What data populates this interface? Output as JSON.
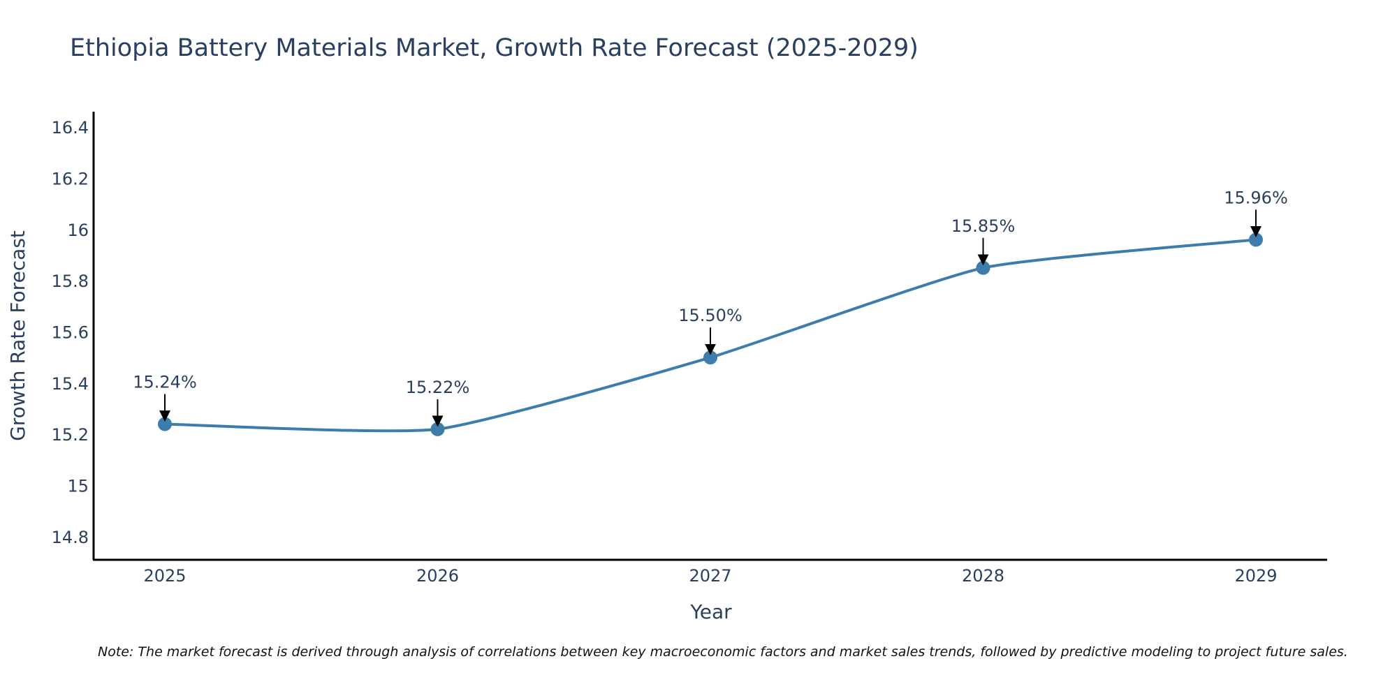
{
  "chart_data": {
    "type": "line",
    "title": "Ethiopia Battery Materials Market, Growth Rate Forecast (2025-2029)",
    "xlabel": "Year",
    "ylabel": "Growth Rate Forecast",
    "categories": [
      "2025",
      "2026",
      "2027",
      "2028",
      "2029"
    ],
    "values": [
      15.24,
      15.22,
      15.5,
      15.85,
      15.96
    ],
    "data_labels": [
      "15.24%",
      "15.22%",
      "15.50%",
      "15.85%",
      "15.96%"
    ],
    "yticks": [
      14.8,
      15,
      15.2,
      15.4,
      15.6,
      15.8,
      16,
      16.2,
      16.4
    ],
    "ytick_labels": [
      "14.8",
      "15",
      "15.2",
      "15.4",
      "15.6",
      "15.8",
      "16",
      "16.2",
      "16.4"
    ],
    "ylim": [
      14.71,
      16.46
    ],
    "grid": false,
    "line_color": "#3d7dab",
    "note": "Note: The market forecast is derived through analysis of correlations between key macroeconomic factors and market sales trends, followed by predictive modeling to project future sales."
  }
}
